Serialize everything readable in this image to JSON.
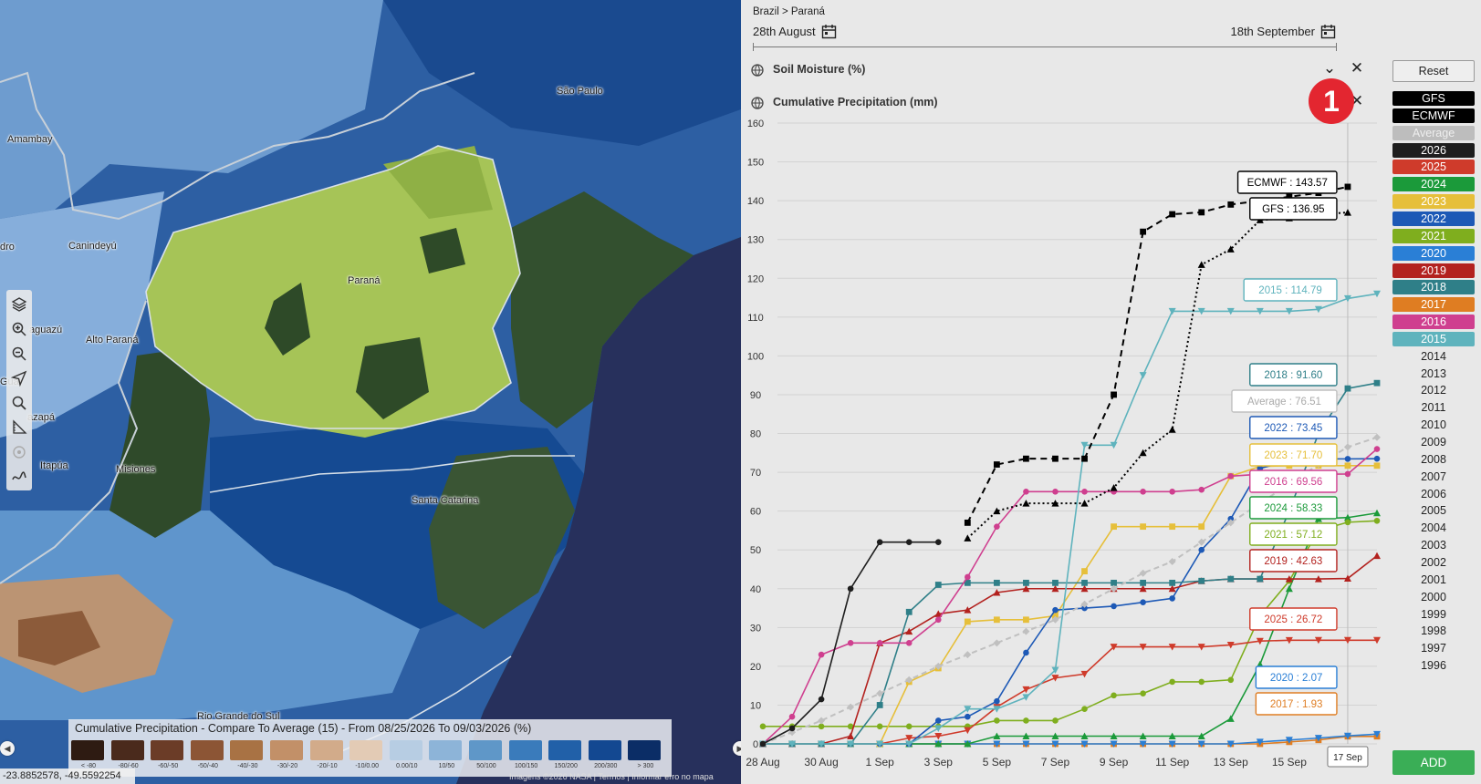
{
  "map": {
    "labels": [
      "Amambay",
      "Canindeyú",
      "Alto Paraná",
      "Itapúa",
      "Misiones",
      "Paraná",
      "São Paulo",
      "Santa Catarina",
      "Rio Grande do Sul",
      "dro",
      "aguazú",
      "Guai",
      "azapá"
    ],
    "coordinates": "-23.8852578, -49.5592254",
    "attribution": "Imagens ©2026 NASA  |  Termos  |  Informar erro no mapa",
    "tools": [
      "layers-icon",
      "zoom-in-icon",
      "zoom-out-icon",
      "locate-icon",
      "search-icon",
      "measure-icon",
      "target-icon",
      "draw-icon"
    ],
    "legend": {
      "title": "Cumulative Precipitation - Compare To Average (15) - From 08/25/2026 To 09/03/2026 (%)",
      "items": [
        {
          "label": "< -80",
          "color": "#2e1b12"
        },
        {
          "label": "-80/-60",
          "color": "#4a2a1c"
        },
        {
          "label": "-60/-50",
          "color": "#6b3c27"
        },
        {
          "label": "-50/-40",
          "color": "#8c5535"
        },
        {
          "label": "-40/-30",
          "color": "#a87244"
        },
        {
          "label": "-30/-20",
          "color": "#c29068"
        },
        {
          "label": "-20/-10",
          "color": "#d2ab8a"
        },
        {
          "label": "-10/0.00",
          "color": "#e3cbb5"
        },
        {
          "label": "0.00/10",
          "color": "#b7cde3"
        },
        {
          "label": "10/50",
          "color": "#8db4d8"
        },
        {
          "label": "50/100",
          "color": "#5f97c8"
        },
        {
          "label": "100/150",
          "color": "#3a7bbb"
        },
        {
          "label": "150/200",
          "color": "#2160a8"
        },
        {
          "label": "200/300",
          "color": "#134891"
        },
        {
          "label": "> 300",
          "color": "#0b2d66"
        }
      ]
    }
  },
  "panel": {
    "breadcrumb": "Brazil > Paraná",
    "date_start": "28th August",
    "date_end": "18th September",
    "layers": [
      {
        "label": "Soil Moisture (%)"
      },
      {
        "label": "Cumulative Precipitation (mm)"
      }
    ],
    "badge": "1"
  },
  "sidebar": {
    "reset": "Reset",
    "add": "ADD",
    "items": [
      {
        "label": "GFS",
        "color": "#000000",
        "text": "#ffffff"
      },
      {
        "label": "ECMWF",
        "color": "#000000",
        "text": "#ffffff"
      },
      {
        "label": "Average",
        "color": "#bdbdbd",
        "text": "#eeeeee"
      },
      {
        "label": "2026",
        "color": "#1e1e1e",
        "text": "#ffffff"
      },
      {
        "label": "2025",
        "color": "#cf3b2b",
        "text": "#ffffff"
      },
      {
        "label": "2024",
        "color": "#1b9a3a",
        "text": "#ffffff"
      },
      {
        "label": "2023",
        "color": "#e6bf3a",
        "text": "#ffffff"
      },
      {
        "label": "2022",
        "color": "#1d59b6",
        "text": "#ffffff"
      },
      {
        "label": "2021",
        "color": "#7fae1e",
        "text": "#ffffff"
      },
      {
        "label": "2020",
        "color": "#2a7fd6",
        "text": "#ffffff"
      },
      {
        "label": "2019",
        "color": "#b3221f",
        "text": "#ffffff"
      },
      {
        "label": "2018",
        "color": "#2f7f88",
        "text": "#ffffff"
      },
      {
        "label": "2017",
        "color": "#df7d22",
        "text": "#ffffff"
      },
      {
        "label": "2016",
        "color": "#cf3f8f",
        "text": "#ffffff"
      },
      {
        "label": "2015",
        "color": "#5fb3bd",
        "text": "#ffffff"
      },
      {
        "label": "2014"
      },
      {
        "label": "2013"
      },
      {
        "label": "2012"
      },
      {
        "label": "2011"
      },
      {
        "label": "2010"
      },
      {
        "label": "2009"
      },
      {
        "label": "2008"
      },
      {
        "label": "2007"
      },
      {
        "label": "2006"
      },
      {
        "label": "2005"
      },
      {
        "label": "2004"
      },
      {
        "label": "2003"
      },
      {
        "label": "2002"
      },
      {
        "label": "2001"
      },
      {
        "label": "2000"
      },
      {
        "label": "1999"
      },
      {
        "label": "1998"
      },
      {
        "label": "1997"
      },
      {
        "label": "1996"
      }
    ]
  },
  "chart_data": {
    "type": "line",
    "title": "Cumulative Precipitation (mm)",
    "ylim": [
      0,
      160
    ],
    "yticks": [
      0,
      10,
      20,
      30,
      40,
      50,
      60,
      70,
      80,
      90,
      100,
      110,
      120,
      130,
      140,
      150,
      160
    ],
    "xlim": [
      0,
      21
    ],
    "xticks": [
      {
        "x": 0,
        "label": "28 Aug"
      },
      {
        "x": 2,
        "label": "30 Aug"
      },
      {
        "x": 4,
        "label": "1 Sep"
      },
      {
        "x": 6,
        "label": "3 Sep"
      },
      {
        "x": 8,
        "label": "5 Sep"
      },
      {
        "x": 10,
        "label": "7 Sep"
      },
      {
        "x": 12,
        "label": "9 Sep"
      },
      {
        "x": 14,
        "label": "11 Sep"
      },
      {
        "x": 16,
        "label": "13 Sep"
      },
      {
        "x": 18,
        "label": "15 Sep"
      }
    ],
    "hover_label": "17 Sep",
    "hover_x": 20,
    "grid": true,
    "series": [
      {
        "name": "2026",
        "color": "#1e1e1e",
        "marker": "circle",
        "dash": "",
        "x": [
          0,
          1,
          2,
          3,
          4,
          5,
          6
        ],
        "y": [
          0,
          4,
          11.5,
          40,
          52,
          52,
          52
        ]
      },
      {
        "name": "ECMWF",
        "color": "#000000",
        "marker": "square",
        "dash": "7,5",
        "x": [
          7,
          8,
          9,
          10,
          11,
          12,
          13,
          14,
          15,
          16,
          17,
          18,
          19,
          20
        ],
        "y": [
          57,
          72,
          73.5,
          73.5,
          73.5,
          90,
          132,
          136.5,
          137,
          139,
          140,
          141,
          142,
          143.57
        ]
      },
      {
        "name": "GFS",
        "color": "#000000",
        "marker": "triangle",
        "dash": "2,3",
        "x": [
          7,
          8,
          9,
          10,
          11,
          12,
          13,
          14,
          15,
          16,
          17,
          18,
          19,
          20
        ],
        "y": [
          53,
          60,
          62,
          62,
          62,
          66,
          75,
          81,
          123.5,
          127.5,
          135,
          135.5,
          136.5,
          136.95
        ]
      },
      {
        "name": "Average",
        "color": "#c0c0c0",
        "marker": "diamond",
        "dash": "6,4",
        "x": [
          0,
          1,
          2,
          3,
          4,
          5,
          6,
          7,
          8,
          9,
          10,
          11,
          12,
          13,
          14,
          15,
          16,
          17,
          18,
          19,
          20,
          21
        ],
        "y": [
          0,
          3,
          6,
          9.5,
          13,
          16.5,
          20,
          23,
          26,
          29,
          32,
          36,
          40,
          44,
          47,
          52,
          57,
          62,
          67,
          72,
          76.51,
          79
        ]
      },
      {
        "name": "2015",
        "color": "#5fb3bd",
        "marker": "triangle-down",
        "dash": "",
        "x": [
          0,
          1,
          2,
          3,
          4,
          5,
          6,
          7,
          8,
          9,
          10,
          11,
          12,
          13,
          14,
          15,
          16,
          17,
          18,
          19,
          20,
          21
        ],
        "y": [
          0,
          0,
          0,
          0,
          0,
          0,
          4,
          9,
          9,
          12,
          19,
          77,
          77,
          95,
          111.5,
          111.5,
          111.5,
          111.5,
          111.5,
          112,
          114.79,
          116
        ]
      },
      {
        "name": "2016",
        "color": "#cf3f8f",
        "marker": "circle",
        "dash": "",
        "x": [
          0,
          1,
          2,
          3,
          4,
          5,
          6,
          7,
          8,
          9,
          10,
          11,
          12,
          13,
          14,
          15,
          16,
          17,
          18,
          19,
          20,
          21
        ],
        "y": [
          0,
          7,
          23,
          26,
          26,
          26,
          32,
          43,
          56,
          65,
          65,
          65,
          65,
          65,
          65,
          65.5,
          69,
          69.5,
          69.5,
          69.5,
          69.56,
          76
        ]
      },
      {
        "name": "2018",
        "color": "#2f7f88",
        "marker": "square",
        "dash": "",
        "x": [
          0,
          1,
          2,
          3,
          4,
          5,
          6,
          7,
          8,
          9,
          10,
          11,
          12,
          13,
          14,
          15,
          16,
          17,
          18,
          19,
          20,
          21
        ],
        "y": [
          0,
          0,
          0,
          0,
          10,
          34,
          41,
          41.5,
          41.5,
          41.5,
          41.5,
          41.5,
          41.5,
          41.5,
          41.5,
          42,
          42.5,
          42.5,
          60,
          80,
          91.6,
          93
        ]
      },
      {
        "name": "2019",
        "color": "#b3221f",
        "marker": "triangle",
        "dash": "",
        "x": [
          0,
          1,
          2,
          3,
          4,
          5,
          6,
          7,
          8,
          9,
          10,
          11,
          12,
          13,
          14,
          15,
          16,
          17,
          18,
          19,
          20,
          21
        ],
        "y": [
          0,
          0,
          0,
          2,
          26,
          29,
          33.5,
          34.5,
          39,
          40,
          40,
          40,
          40,
          40,
          40,
          42,
          42.5,
          42.5,
          42.5,
          42.5,
          42.63,
          48.5
        ]
      },
      {
        "name": "2022",
        "color": "#1d59b6",
        "marker": "circle",
        "dash": "",
        "x": [
          0,
          1,
          2,
          3,
          4,
          5,
          6,
          7,
          8,
          9,
          10,
          11,
          12,
          13,
          14,
          15,
          16,
          17,
          18,
          19,
          20,
          21
        ],
        "y": [
          0,
          0,
          0,
          0,
          0,
          0,
          6,
          7,
          11,
          23.5,
          34.5,
          35,
          35.5,
          36.5,
          37.5,
          50,
          58,
          71,
          73,
          73.45,
          73.45,
          73.5
        ]
      },
      {
        "name": "2023",
        "color": "#e6bf3a",
        "marker": "square",
        "dash": "",
        "x": [
          0,
          1,
          2,
          3,
          4,
          5,
          6,
          7,
          8,
          9,
          10,
          11,
          12,
          13,
          14,
          15,
          16,
          17,
          18,
          19,
          20,
          21
        ],
        "y": [
          0,
          0,
          0,
          0,
          0,
          16,
          19.5,
          31.5,
          32,
          32,
          33,
          44.5,
          56,
          56,
          56,
          56,
          69,
          71.5,
          71.7,
          71.7,
          71.7,
          71.7
        ]
      },
      {
        "name": "2025",
        "color": "#cf3b2b",
        "marker": "triangle-down",
        "dash": "",
        "x": [
          0,
          1,
          2,
          3,
          4,
          5,
          6,
          7,
          8,
          9,
          10,
          11,
          12,
          13,
          14,
          15,
          16,
          17,
          18,
          19,
          20,
          21
        ],
        "y": [
          0,
          0,
          0,
          0,
          0,
          1.5,
          2,
          3.5,
          9.5,
          14,
          17,
          18,
          25,
          25,
          25,
          25,
          25.5,
          26.5,
          26.7,
          26.72,
          26.72,
          26.72
        ]
      },
      {
        "name": "2021",
        "color": "#7fae1e",
        "marker": "circle",
        "dash": "",
        "x": [
          0,
          1,
          2,
          3,
          4,
          5,
          6,
          7,
          8,
          9,
          10,
          11,
          12,
          13,
          14,
          15,
          16,
          17,
          18,
          19,
          20,
          21
        ],
        "y": [
          4.5,
          4.5,
          4.5,
          4.5,
          4.5,
          4.5,
          4.5,
          4.5,
          6,
          6,
          6,
          9,
          12.5,
          13,
          16,
          16,
          16.5,
          33,
          42,
          55,
          57.12,
          57.5
        ]
      },
      {
        "name": "2024",
        "color": "#1b9a3a",
        "marker": "triangle",
        "dash": "",
        "x": [
          0,
          1,
          2,
          3,
          4,
          5,
          6,
          7,
          8,
          9,
          10,
          11,
          12,
          13,
          14,
          15,
          16,
          17,
          18,
          19,
          20,
          21
        ],
        "y": [
          0,
          0,
          0,
          0,
          0,
          0,
          0,
          0,
          2,
          2,
          2,
          2,
          2,
          2,
          2,
          2,
          6.5,
          20.5,
          40,
          58,
          58.33,
          59.5
        ]
      },
      {
        "name": "2020",
        "color": "#2a7fd6",
        "marker": "triangle-down",
        "dash": "",
        "x": [
          0,
          1,
          2,
          3,
          4,
          5,
          6,
          7,
          8,
          9,
          10,
          11,
          12,
          13,
          14,
          15,
          16,
          17,
          18,
          19,
          20,
          21
        ],
        "y": [
          0,
          0,
          0,
          0,
          0,
          0,
          0,
          0,
          0,
          0,
          0,
          0,
          0,
          0,
          0,
          0,
          0,
          0.5,
          1,
          1.5,
          2.07,
          2.5
        ]
      },
      {
        "name": "2017",
        "color": "#df7d22",
        "marker": "square",
        "dash": "",
        "x": [
          0,
          1,
          2,
          3,
          4,
          5,
          6,
          7,
          8,
          9,
          10,
          11,
          12,
          13,
          14,
          15,
          16,
          17,
          18,
          19,
          20,
          21
        ],
        "y": [
          0,
          0,
          0,
          0,
          0,
          0,
          0,
          0,
          0,
          0,
          0,
          0,
          0,
          0,
          0,
          0,
          0,
          0,
          0.5,
          1,
          1.93,
          1.93
        ]
      }
    ],
    "tooltips": [
      {
        "text": "ECMWF : 143.57",
        "color": "#000000",
        "x": 20,
        "y": 143.57
      },
      {
        "text": "GFS : 136.95",
        "color": "#000000",
        "x": 20,
        "y": 136.95
      },
      {
        "text": "2015 : 114.79",
        "color": "#5fb3bd",
        "x": 20,
        "y": 114.79
      },
      {
        "text": "2018 : 91.60",
        "color": "#2f7f88",
        "x": 20,
        "y": 91.6
      },
      {
        "text": "Average : 76.51",
        "color": "#c0c0c0",
        "x": 20,
        "y": 76.51
      },
      {
        "text": "2022 : 73.45",
        "color": "#1d59b6",
        "x": 20,
        "y": 73.45
      },
      {
        "text": "2023 : 71.70",
        "color": "#e6bf3a",
        "x": 20,
        "y": 71.7
      },
      {
        "text": "2016 : 69.56",
        "color": "#cf3f8f",
        "x": 20,
        "y": 69.56
      },
      {
        "text": "2024 : 58.33",
        "color": "#1b9a3a",
        "x": 20,
        "y": 58.33
      },
      {
        "text": "2021 : 57.12",
        "color": "#7fae1e",
        "x": 20,
        "y": 57.12
      },
      {
        "text": "2019 : 42.63",
        "color": "#b3221f",
        "x": 20,
        "y": 42.63
      },
      {
        "text": "2025 : 26.72",
        "color": "#cf3b2b",
        "x": 20,
        "y": 26.72
      },
      {
        "text": "2020 : 2.07",
        "color": "#2a7fd6",
        "x": 20,
        "y": 2.07
      },
      {
        "text": "2017 : 1.93",
        "color": "#df7d22",
        "x": 20,
        "y": 1.93
      }
    ]
  }
}
